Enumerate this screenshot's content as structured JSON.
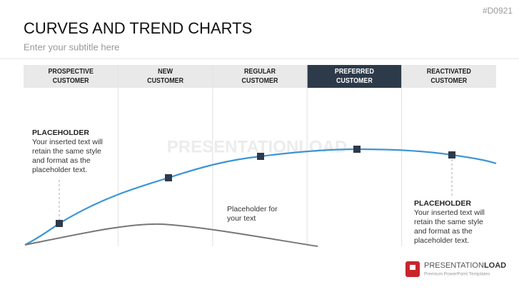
{
  "header": {
    "title": "CURVES AND TREND CHARTS",
    "subtitle": "Enter your subtitle here",
    "code": "#D0921"
  },
  "columns": [
    {
      "lines": [
        "PROSPECTIVE",
        "CUSTOMER"
      ]
    },
    {
      "lines": [
        "NEW",
        "CUSTOMER"
      ]
    },
    {
      "lines": [
        "REGULAR",
        "CUSTOMER"
      ]
    },
    {
      "lines": [
        "PREFERRED",
        "CUSTOMER"
      ]
    },
    {
      "lines": [
        "REACTIVATED",
        "CUSTOMER"
      ]
    }
  ],
  "notes": [
    {
      "heading": "PLACEHOLDER",
      "lines": [
        "Your inserted text will",
        "retain the same style",
        "and format as the",
        "placeholder text."
      ]
    },
    {
      "heading": "PLACEHOLDER",
      "lines": [
        "Your inserted text will",
        "retain the same style",
        "and format as the",
        "placeholder text."
      ]
    },
    {
      "lines": [
        "Placeholder for",
        "your text"
      ]
    }
  ],
  "watermark": "PRESENTATIONLOAD",
  "logo": {
    "brand": "PRESENTATION",
    "brand_bold": "LOAD",
    "tagline": "Premium PowerPoint Templates"
  }
}
